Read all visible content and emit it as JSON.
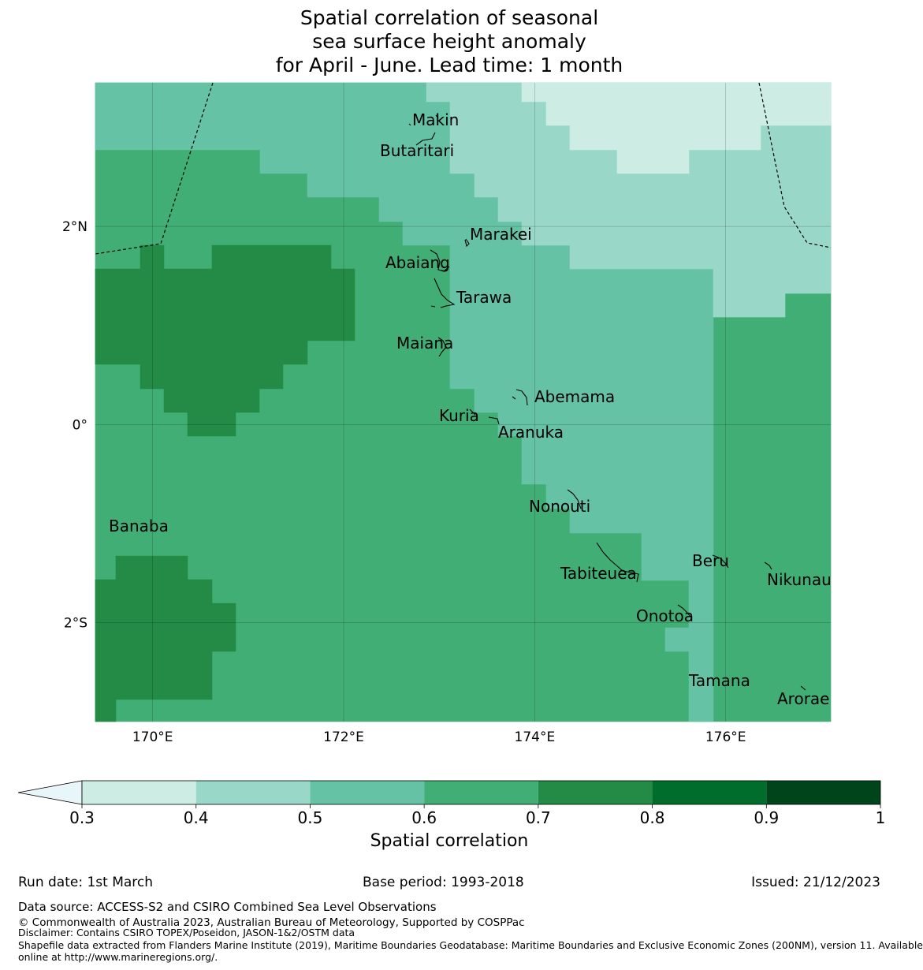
{
  "title": {
    "line1": "Spatial correlation of seasonal",
    "line2": "sea surface height anomaly",
    "line3": "for April - June. Lead time: 1 month"
  },
  "map": {
    "lon_range": [
      169.4,
      177.1
    ],
    "lat_range": [
      -3.0,
      3.45
    ],
    "lon_ticks": [
      {
        "v": 170,
        "label": "170°E"
      },
      {
        "v": 172,
        "label": "172°E"
      },
      {
        "v": 174,
        "label": "174°E"
      },
      {
        "v": 176,
        "label": "176°E"
      }
    ],
    "lat_ticks": [
      {
        "v": 2,
        "label": "2°N"
      },
      {
        "v": 0,
        "label": "0°"
      },
      {
        "v": -2,
        "label": "2°S"
      }
    ],
    "grid": true,
    "islands": [
      {
        "name": "Makin",
        "lon": 173.05,
        "lat": 3.3
      },
      {
        "name": "Butaritari",
        "lon": 172.8,
        "lat": 3.05
      },
      {
        "name": "Marakei",
        "lon": 173.35,
        "lat": 2.0
      },
      {
        "name": "Abaiang",
        "lon": 172.95,
        "lat": 1.85
      },
      {
        "name": "Tarawa",
        "lon": 173.0,
        "lat": 1.45
      },
      {
        "name": "Maiana",
        "lon": 173.0,
        "lat": 0.95
      },
      {
        "name": "Abemama",
        "lon": 173.85,
        "lat": 0.4
      },
      {
        "name": "Kuria",
        "lon": 173.4,
        "lat": 0.22
      },
      {
        "name": "Aranuka",
        "lon": 173.6,
        "lat": 0.15
      },
      {
        "name": "Nonouti",
        "lon": 174.4,
        "lat": -0.65
      },
      {
        "name": "Banaba",
        "lon": 169.55,
        "lat": -0.87
      },
      {
        "name": "Tabiteuea",
        "lon": 174.8,
        "lat": -1.35
      },
      {
        "name": "Beru",
        "lon": 175.97,
        "lat": -1.33
      },
      {
        "name": "Nikunau",
        "lon": 176.45,
        "lat": -1.35
      },
      {
        "name": "Onotoa",
        "lon": 175.55,
        "lat": -1.8
      },
      {
        "name": "Tamana",
        "lon": 175.98,
        "lat": -2.5
      },
      {
        "name": "Arorae",
        "lon": 176.82,
        "lat": -2.65
      }
    ]
  },
  "colorbar": {
    "label": "Spatial correlation",
    "ticks": [
      "0.3",
      "0.4",
      "0.5",
      "0.6",
      "0.7",
      "0.8",
      "0.9",
      "1"
    ],
    "colors": [
      "#ccece4",
      "#99d8c8",
      "#66c2a4",
      "#41ae76",
      "#238b45",
      "#006d2c",
      "#00441b"
    ],
    "under_color": "#e8f6f9"
  },
  "colors": {
    "c1": "#ccece4",
    "c2": "#99d8c8",
    "c3": "#66c2a4",
    "c4": "#41ae76",
    "c5": "#238b45"
  },
  "footer": {
    "run_date": "Run date: 1st March",
    "base_period": "Base period: 1993-2018",
    "issued": "Issued: 21/12/2023",
    "data_source": "Data source: ACCESS-S2 and CSIRO Combined Sea Level Observations",
    "copyright": "© Commonwealth of Australia 2023, Australian Bureau of Meteorology, Supported by COSPPac",
    "disclaimer": "Disclaimer: Contains CSIRO TOPEX/Poseidon, JASON-1&2/OSTM data",
    "shapefile1": "Shapefile data extracted from Flanders Marine Institute (2019), Maritime Boundaries Geodatabase: Maritime Boundaries and Exclusive Economic Zones (200NM), version 11. Available",
    "shapefile2": "online at http://www.marineregions.org/."
  }
}
